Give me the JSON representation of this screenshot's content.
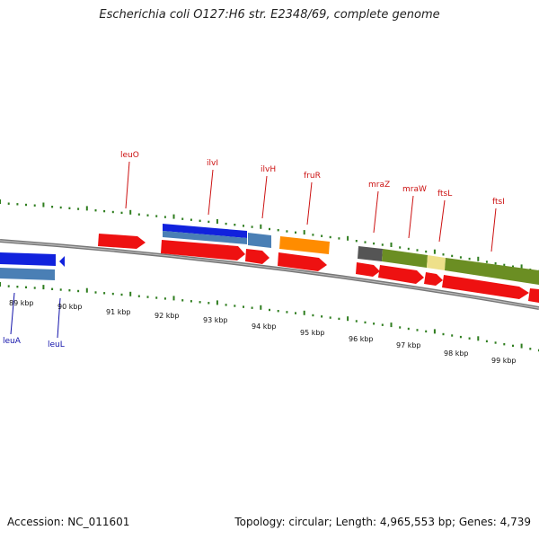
{
  "title": "Escherichia coli O127:H6 str. E2348/69, complete genome",
  "accession": "Accession: NC_011601",
  "summary": "Topology: circular; Length: 4,965,553 bp; Genes: 4,739",
  "colors": {
    "backbone": "#888888",
    "gene_red": "#ee1111",
    "cds_blue": "#1122dd",
    "cds_steel": "#4a7fb5",
    "cds_orange": "#ff8c00",
    "cds_olive": "#6b8e23",
    "cds_khaki": "#eee08a",
    "cds_gray": "#555555",
    "tick_green": "#2e7d1e",
    "label_red": "#cc1111",
    "label_blue": "#1111aa"
  },
  "kbp_labels": [
    "89 kbp",
    "90 kbp",
    "91 kbp",
    "92 kbp",
    "93 kbp",
    "94 kbp",
    "95 kbp",
    "96 kbp",
    "97 kbp",
    "98 kbp",
    "99 kbp"
  ],
  "gene_labels_top": [
    "leuO",
    "ilvI",
    "ilvH",
    "fruR",
    "mraZ",
    "mraW",
    "ftsL",
    "ftsI"
  ],
  "gene_labels_bottom": [
    "leuA",
    "leuL"
  ]
}
